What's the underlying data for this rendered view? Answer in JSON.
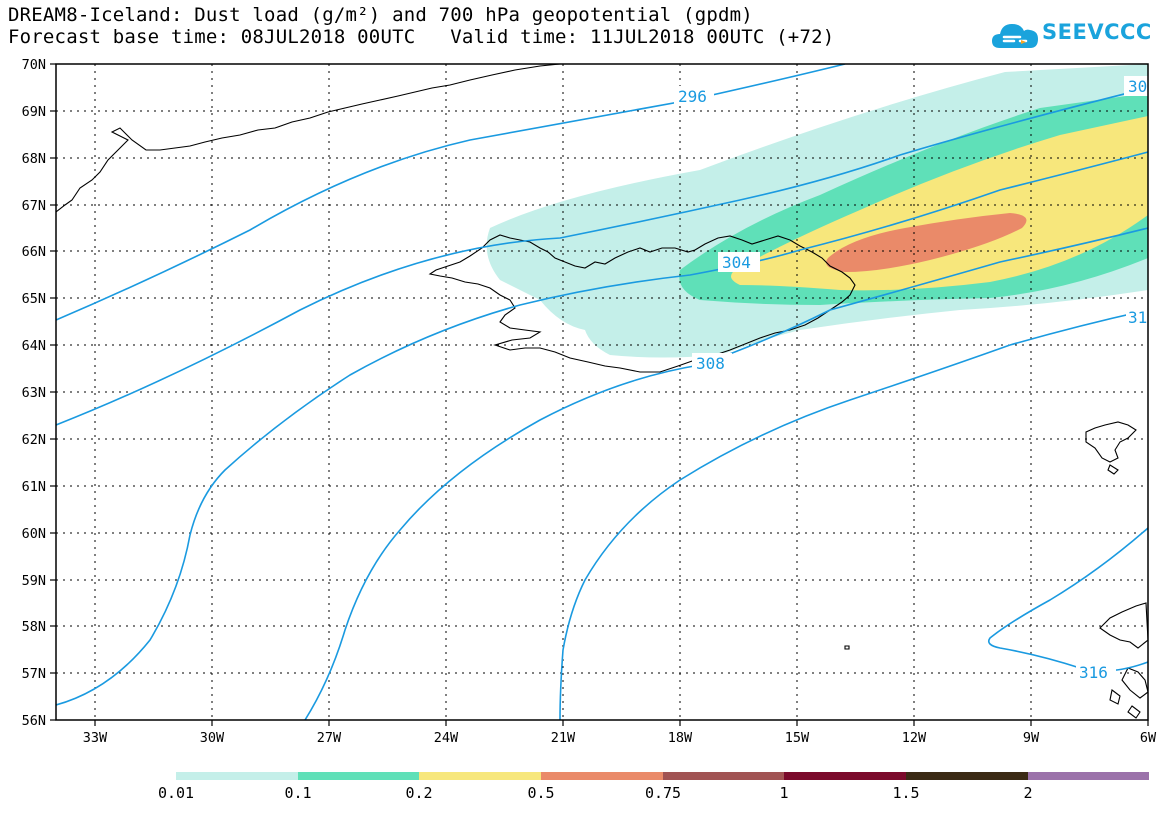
{
  "header": {
    "title_line1": "DREAM8-Iceland: Dust load (g/m²) and 700 hPa geopotential (gpdm)",
    "title_line2": "Forecast base time: 08JUL2018 00UTC   Valid time: 11JUL2018 00UTC (+72)"
  },
  "logo": {
    "text": "SEEVCCC"
  },
  "map": {
    "lat_labels": [
      "70N",
      "69N",
      "68N",
      "67N",
      "66N",
      "65N",
      "64N",
      "63N",
      "62N",
      "61N",
      "60N",
      "59N",
      "58N",
      "57N",
      "56N"
    ],
    "lon_labels": [
      "33W",
      "30W",
      "27W",
      "24W",
      "21W",
      "18W",
      "15W",
      "12W",
      "9W",
      "6W"
    ],
    "contour_labels": [
      "296",
      "30",
      "304",
      "308",
      "31",
      "316"
    ],
    "contour_color": "#1a9ae0"
  },
  "legend": {
    "thresholds": [
      "0.01",
      "0.1",
      "0.2",
      "0.5",
      "0.75",
      "1",
      "1.5",
      "2"
    ],
    "colors": [
      "#c4efe9",
      "#5fe0b8",
      "#f7e77c",
      "#ea8a69",
      "#a15353",
      "#7b0a2b",
      "#3b2a15",
      "#9b72aa"
    ]
  }
}
